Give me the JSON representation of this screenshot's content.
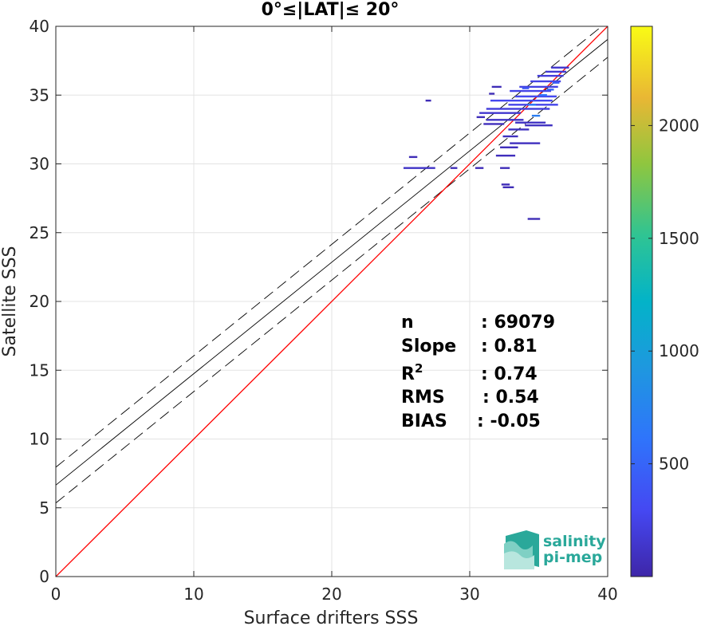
{
  "chart_data": {
    "type": "heatmap",
    "title": "0°≤|LAT|≤ 20°",
    "xlabel": "Surface drifters SSS",
    "ylabel": "Satellite SSS",
    "xlim": [
      0,
      40
    ],
    "ylim": [
      0,
      40
    ],
    "xticks": [
      "0",
      "10",
      "20",
      "30",
      "40"
    ],
    "yticks": [
      "0",
      "5",
      "10",
      "15",
      "20",
      "25",
      "30",
      "35",
      "40"
    ],
    "grid": true,
    "colorbar": {
      "ticks": [
        "500",
        "1000",
        "1500",
        "2000"
      ],
      "tick_values": [
        500,
        1000,
        1500,
        2000
      ],
      "range": [
        0,
        2440
      ],
      "colormap": "parula"
    },
    "stats": [
      {
        "label": "n",
        "value": ": 69079"
      },
      {
        "label": "Slope",
        "value": ": 0.81"
      },
      {
        "label": "R",
        "sup": "2",
        "value": ": 0.74"
      },
      {
        "label": "RMS",
        "value": ": 0.54"
      },
      {
        "label": "BIAS",
        "value": ": -0.05"
      }
    ],
    "lines": {
      "identity": {
        "x": [
          0,
          40
        ],
        "y": [
          0,
          40
        ],
        "color": "#ff0000"
      },
      "fit": {
        "slope": 0.81,
        "intercept": 6.65,
        "color": "#000000"
      },
      "fit_upper": {
        "slope": 0.81,
        "intercept": 7.95,
        "style": "dashed"
      },
      "fit_lower": {
        "slope": 0.81,
        "intercept": 5.35,
        "style": "dashed"
      }
    },
    "density_segments": [
      {
        "x0": 25.2,
        "x1": 27.5,
        "y": 29.7,
        "count": 120
      },
      {
        "x0": 25.6,
        "x1": 26.2,
        "y": 30.5,
        "count": 60
      },
      {
        "x0": 26.8,
        "x1": 27.2,
        "y": 34.6,
        "count": 60
      },
      {
        "x0": 28.6,
        "x1": 29.1,
        "y": 29.7,
        "count": 60
      },
      {
        "x0": 30.4,
        "x1": 31.0,
        "y": 29.7,
        "count": 60
      },
      {
        "x0": 32.2,
        "x1": 32.9,
        "y": 29.7,
        "count": 60
      },
      {
        "x0": 32.3,
        "x1": 32.9,
        "y": 28.5,
        "count": 60
      },
      {
        "x0": 31.9,
        "x1": 33.3,
        "y": 30.6,
        "count": 80
      },
      {
        "x0": 32.2,
        "x1": 33.5,
        "y": 31.2,
        "count": 80
      },
      {
        "x0": 32.9,
        "x1": 35.1,
        "y": 31.5,
        "count": 90
      },
      {
        "x0": 32.4,
        "x1": 33.5,
        "y": 32.0,
        "count": 90
      },
      {
        "x0": 32.8,
        "x1": 34.3,
        "y": 32.5,
        "count": 100
      },
      {
        "x0": 33.3,
        "x1": 35.5,
        "y": 33.0,
        "count": 110
      },
      {
        "x0": 31.0,
        "x1": 32.5,
        "y": 32.9,
        "count": 80
      },
      {
        "x0": 31.2,
        "x1": 33.9,
        "y": 33.2,
        "count": 120
      },
      {
        "x0": 34.0,
        "x1": 36.0,
        "y": 32.8,
        "count": 100
      },
      {
        "x0": 30.5,
        "x1": 31.1,
        "y": 33.4,
        "count": 70
      },
      {
        "x0": 30.7,
        "x1": 33.7,
        "y": 33.7,
        "count": 150
      },
      {
        "x0": 31.2,
        "x1": 35.8,
        "y": 34.0,
        "count": 200
      },
      {
        "x0": 32.8,
        "x1": 36.4,
        "y": 34.3,
        "count": 260
      },
      {
        "x0": 31.5,
        "x1": 36.0,
        "y": 34.6,
        "count": 280
      },
      {
        "x0": 33.3,
        "x1": 36.3,
        "y": 34.9,
        "count": 300
      },
      {
        "x0": 32.9,
        "x1": 35.9,
        "y": 35.3,
        "count": 250
      },
      {
        "x0": 33.6,
        "x1": 36.4,
        "y": 35.6,
        "count": 230
      },
      {
        "x0": 34.4,
        "x1": 36.6,
        "y": 36.0,
        "count": 240
      },
      {
        "x0": 34.9,
        "x1": 36.8,
        "y": 36.4,
        "count": 200
      },
      {
        "x0": 35.5,
        "x1": 37.0,
        "y": 36.7,
        "count": 170
      },
      {
        "x0": 35.9,
        "x1": 37.2,
        "y": 37.0,
        "count": 150
      },
      {
        "x0": 34.5,
        "x1": 35.1,
        "y": 33.5,
        "count": 700
      },
      {
        "x0": 34.2,
        "x1": 34.8,
        "y": 34.3,
        "count": 650
      },
      {
        "x0": 35.0,
        "x1": 35.6,
        "y": 35.0,
        "count": 600
      },
      {
        "x0": 35.6,
        "x1": 36.1,
        "y": 35.4,
        "count": 500
      },
      {
        "x0": 36.0,
        "x1": 36.5,
        "y": 35.9,
        "count": 450
      },
      {
        "x0": 33.8,
        "x1": 34.3,
        "y": 35.5,
        "count": 400
      },
      {
        "x0": 31.6,
        "x1": 32.3,
        "y": 35.6,
        "count": 60
      },
      {
        "x0": 31.4,
        "x1": 31.8,
        "y": 35.1,
        "count": 60
      },
      {
        "x0": 34.2,
        "x1": 35.1,
        "y": 26.0,
        "count": 60
      },
      {
        "x0": 32.4,
        "x1": 33.2,
        "y": 28.3,
        "count": 60
      }
    ]
  },
  "logo": {
    "line1": "salinity",
    "line2": "pi-mep",
    "accent": "#2aa89a"
  }
}
